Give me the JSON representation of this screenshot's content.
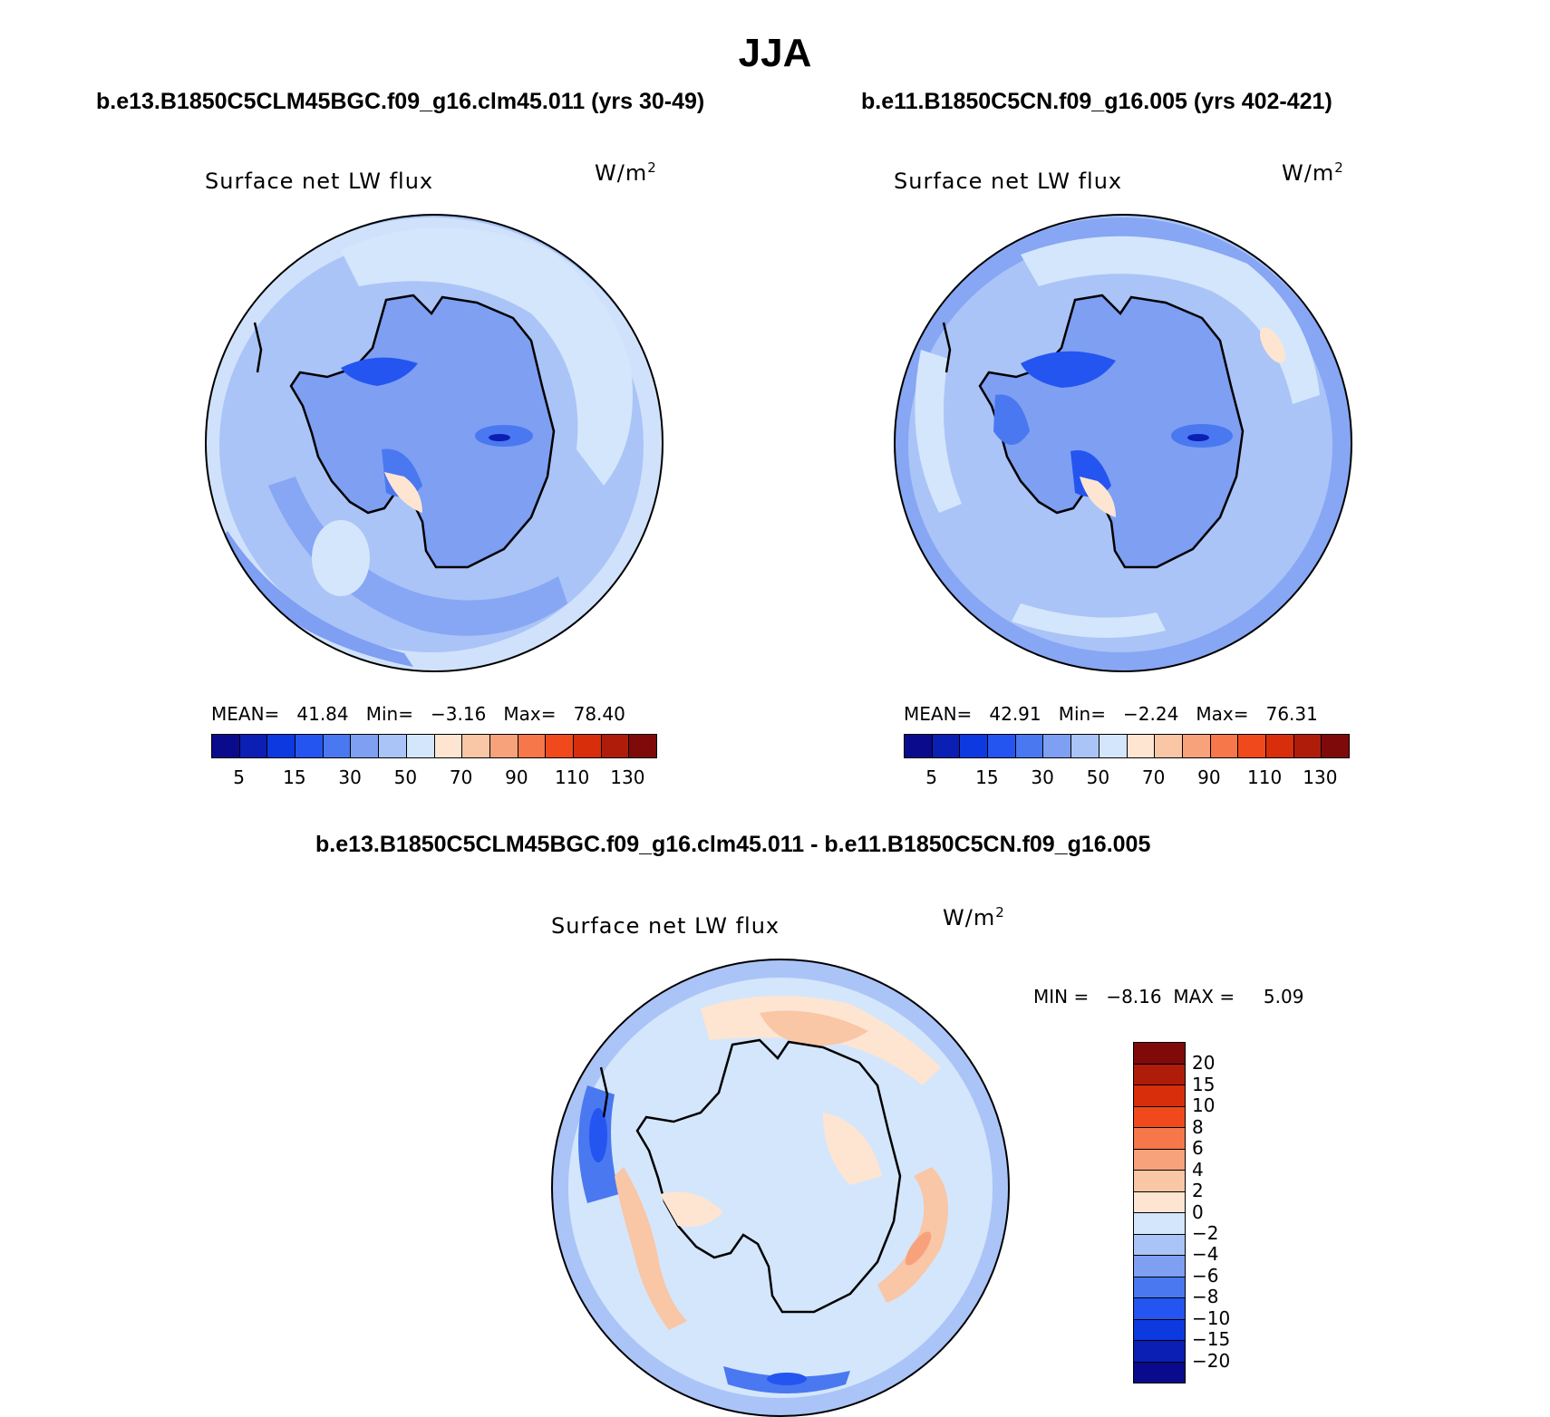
{
  "title": "JJA",
  "panel_a": {
    "case_title": "b.e13.B1850C5CLM45BGC.f09_g16.clm45.011 (yrs 30-49)",
    "plot_title": "Surface net LW flux",
    "units": "W/m",
    "units_sup": "2",
    "mean_label": "MEAN=",
    "mean": "41.84",
    "min_label": "Min=",
    "min": "−3.16",
    "max_label": "Max=",
    "max": "78.40"
  },
  "panel_b": {
    "case_title": "b.e11.B1850C5CN.f09_g16.005 (yrs 402-421)",
    "plot_title": "Surface net LW flux",
    "units": "W/m",
    "units_sup": "2",
    "mean_label": "MEAN=",
    "mean": "42.91",
    "min_label": "Min=",
    "min": "−2.24",
    "max_label": "Max=",
    "max": "76.31"
  },
  "panel_diff": {
    "case_title": "b.e13.B1850C5CLM45BGC.f09_g16.clm45.011 - b.e11.B1850C5CN.f09_g16.005",
    "plot_title": "Surface net LW flux",
    "units": "W/m",
    "units_sup": "2",
    "min_label": "MIN =",
    "min": "−8.16",
    "max_label": "MAX =",
    "max": "5.09"
  },
  "colorbar_abs": {
    "colors": [
      "#0a0a8c",
      "#0b1fb4",
      "#0d3ae0",
      "#2555f0",
      "#4a78f0",
      "#7e9ff2",
      "#aac4f7",
      "#d4e6fb",
      "#fde5d2",
      "#f9c6a6",
      "#f8a27c",
      "#f6774a",
      "#f04a1c",
      "#d82e0c",
      "#b01c0a",
      "#7e0a0a"
    ],
    "tick_labels": [
      "5",
      "15",
      "30",
      "50",
      "70",
      "90",
      "110",
      "130"
    ]
  },
  "colorbar_diff": {
    "colors": [
      "#0a0a8c",
      "#0b1fb4",
      "#0d3ae0",
      "#2555f0",
      "#4a78f0",
      "#7e9ff2",
      "#aac4f7",
      "#d4e6fb",
      "#fde5d2",
      "#f9c6a6",
      "#f8a27c",
      "#f6774a",
      "#f04a1c",
      "#d82e0c",
      "#b01c0a",
      "#7e0a0a"
    ],
    "tick_labels": [
      "−20",
      "−15",
      "−10",
      "−8",
      "−6",
      "−4",
      "−2",
      "0",
      "2",
      "4",
      "6",
      "8",
      "10",
      "15",
      "20"
    ]
  }
}
